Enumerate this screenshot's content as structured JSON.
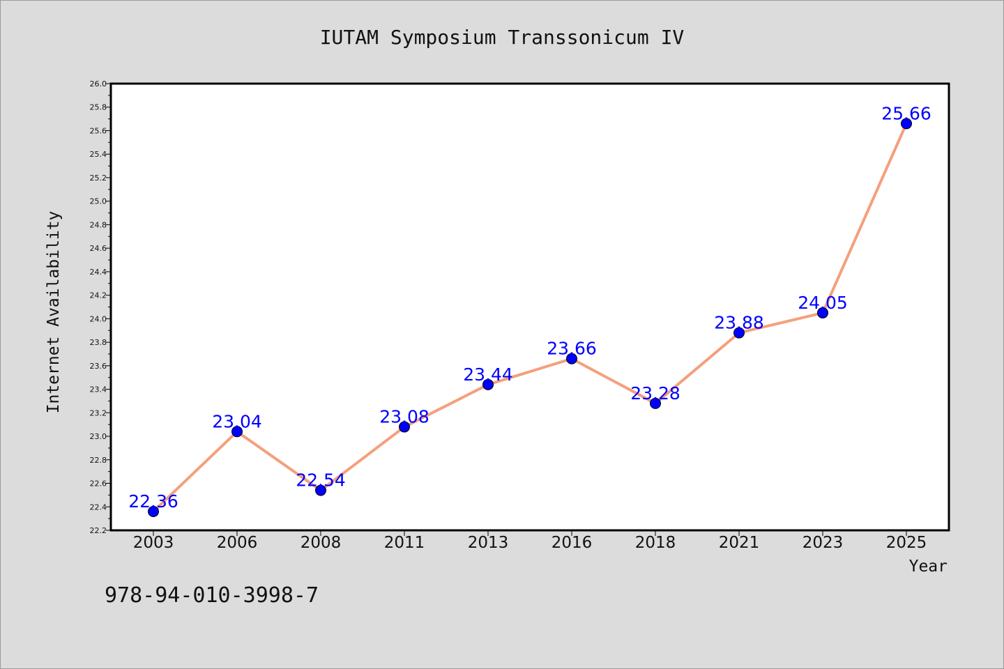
{
  "chart_data": {
    "type": "line",
    "title": "IUTAM Symposium Transsonicum IV",
    "xlabel": "Year",
    "ylabel": "Internet Availability",
    "categories": [
      "2003",
      "2006",
      "2008",
      "2011",
      "2013",
      "2016",
      "2018",
      "2021",
      "2023",
      "2025"
    ],
    "series": [
      {
        "values": [
          22.36,
          23.04,
          22.54,
          23.08,
          23.44,
          23.66,
          23.28,
          23.88,
          24.05,
          25.66
        ]
      }
    ],
    "data_labels": [
      "22.36",
      "23.04",
      "22.54",
      "23.08",
      "23.44",
      "23.66",
      "23.28",
      "23.88",
      "24.05",
      "25.66"
    ],
    "ylim": [
      22.2,
      26.0
    ],
    "yticks": [
      "22.2",
      "22.4",
      "22.6",
      "22.8",
      "23.0",
      "23.2",
      "23.4",
      "23.6",
      "23.8",
      "24.0",
      "24.2",
      "24.4",
      "24.6",
      "24.8",
      "25.0",
      "25.2",
      "25.4",
      "25.6",
      "25.8",
      "26.0"
    ],
    "grid": false,
    "legend": "none",
    "colors": {
      "line": "#f4a07c",
      "marker": "#0000ff",
      "label": "#0000ff",
      "plot_bg": "#ffffff",
      "page_bg": "#dcdcdc"
    }
  },
  "footnote": "978-94-010-3998-7"
}
